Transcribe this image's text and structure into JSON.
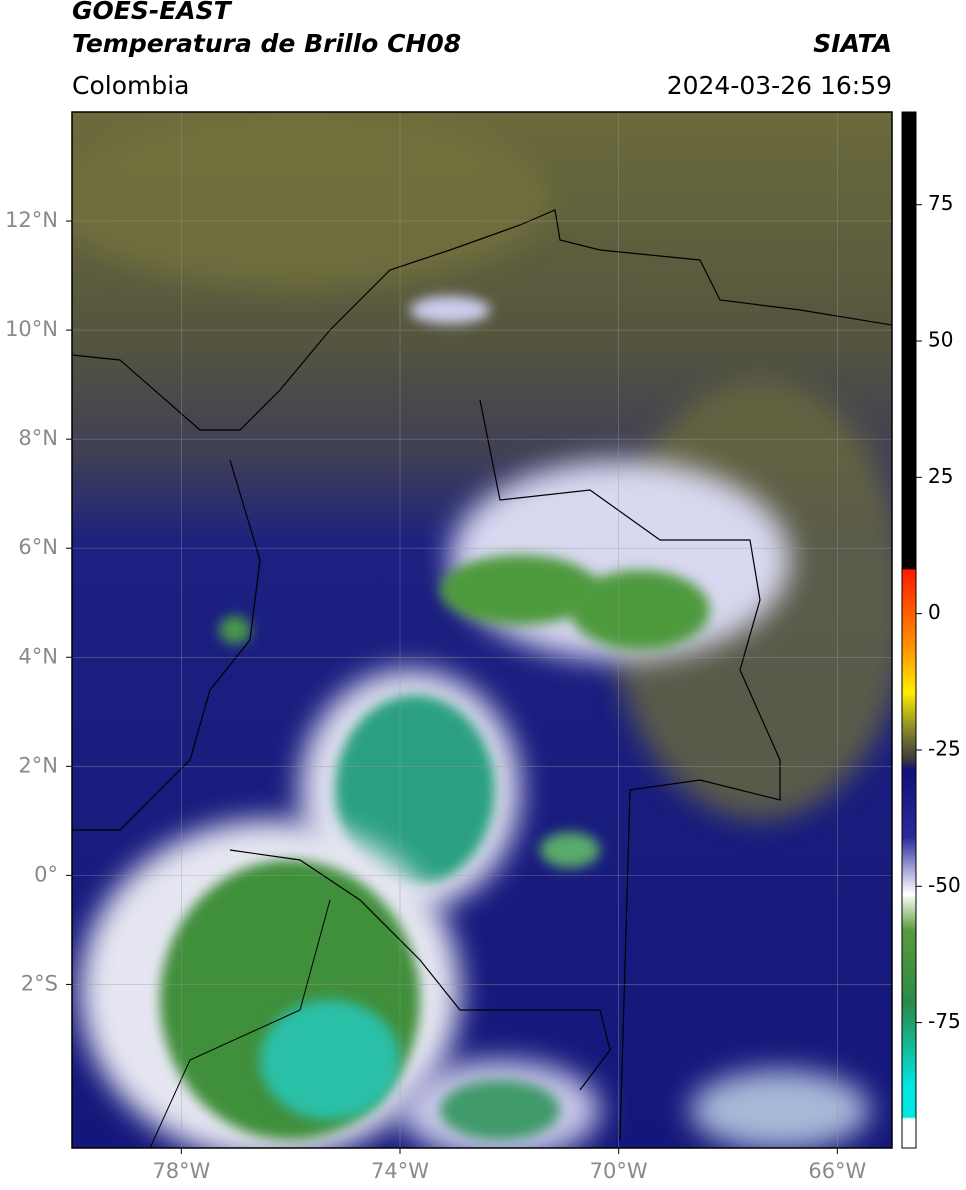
{
  "header": {
    "satellite": "GOES-EAST",
    "product": "Temperatura de Brillo CH08",
    "agency": "SIATA",
    "region": "Colombia",
    "datetime": "2024-03-26 16:59"
  },
  "map": {
    "lonlim": [
      -80,
      -65
    ],
    "latlim": [
      -5,
      14
    ],
    "lonticks": [
      {
        "value": -78,
        "label": "78°W"
      },
      {
        "value": -74,
        "label": "74°W"
      },
      {
        "value": -70,
        "label": "70°W"
      },
      {
        "value": -66,
        "label": "66°W"
      }
    ],
    "latticks": [
      {
        "value": 12,
        "label": "12°N"
      },
      {
        "value": 10,
        "label": "10°N"
      },
      {
        "value": 8,
        "label": "8°N"
      },
      {
        "value": 6,
        "label": "6°N"
      },
      {
        "value": 4,
        "label": "4°N"
      },
      {
        "value": 2,
        "label": "2°N"
      },
      {
        "value": 0,
        "label": "0°"
      },
      {
        "value": -2,
        "label": "2°S"
      }
    ],
    "grid": true
  },
  "colorbar": {
    "lim": [
      -98,
      92
    ],
    "ticks": [
      75,
      50,
      25,
      0,
      -25,
      -50,
      -75
    ]
  }
}
